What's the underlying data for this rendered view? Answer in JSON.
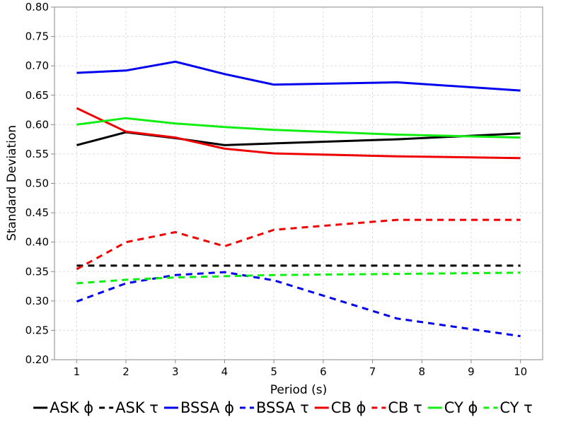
{
  "chart_data": {
    "type": "line",
    "xlabel": "Period (s)",
    "ylabel": "Standard Deviation",
    "xlim": [
      0.55,
      10.45
    ],
    "ylim": [
      0.2,
      0.8
    ],
    "x_ticks": [
      1,
      2,
      3,
      4,
      5,
      6,
      7,
      8,
      9,
      10
    ],
    "x_tick_labels": [
      "1",
      "2",
      "3",
      "4",
      "5",
      "6",
      "7",
      "8",
      "9",
      "10"
    ],
    "y_ticks": [
      0.2,
      0.25,
      0.3,
      0.35,
      0.4,
      0.45,
      0.5,
      0.55,
      0.6,
      0.65,
      0.7,
      0.75,
      0.8
    ],
    "y_tick_labels": [
      "0.20",
      "0.25",
      "0.30",
      "0.35",
      "0.40",
      "0.45",
      "0.50",
      "0.55",
      "0.60",
      "0.65",
      "0.70",
      "0.75",
      "0.80"
    ],
    "grid": true,
    "legend_position": "bottom",
    "series": [
      {
        "name": "ASK ϕ",
        "color": "#000000",
        "dash": "solid",
        "x": [
          1,
          2,
          3,
          4,
          5,
          7.5,
          10
        ],
        "y": [
          0.565,
          0.587,
          0.577,
          0.565,
          0.568,
          0.575,
          0.585
        ]
      },
      {
        "name": "ASK τ",
        "color": "#000000",
        "dash": "dashed",
        "x": [
          1,
          2,
          3,
          4,
          5,
          7.5,
          10
        ],
        "y": [
          0.36,
          0.36,
          0.36,
          0.36,
          0.36,
          0.36,
          0.36
        ]
      },
      {
        "name": "BSSA ϕ",
        "color": "#0000ee",
        "dash": "solid",
        "x": [
          1,
          2,
          3,
          4,
          5,
          7.5,
          10
        ],
        "y": [
          0.688,
          0.692,
          0.707,
          0.686,
          0.668,
          0.672,
          0.658
        ]
      },
      {
        "name": "BSSA τ",
        "color": "#0000ee",
        "dash": "dashed",
        "x": [
          1,
          2,
          3,
          4,
          5,
          7.5,
          10
        ],
        "y": [
          0.299,
          0.33,
          0.344,
          0.349,
          0.335,
          0.27,
          0.24
        ]
      },
      {
        "name": "CB ϕ",
        "color": "#ee0000",
        "dash": "solid",
        "x": [
          1,
          2,
          3,
          4,
          5,
          7.5,
          10
        ],
        "y": [
          0.628,
          0.588,
          0.578,
          0.559,
          0.551,
          0.546,
          0.543
        ]
      },
      {
        "name": "CB τ",
        "color": "#ee0000",
        "dash": "dashed",
        "x": [
          1,
          2,
          3,
          4,
          5,
          7.5,
          10
        ],
        "y": [
          0.354,
          0.4,
          0.417,
          0.393,
          0.421,
          0.438,
          0.438
        ]
      },
      {
        "name": "CY ϕ",
        "color": "#11ee11",
        "dash": "solid",
        "x": [
          1,
          2,
          3,
          4,
          5,
          7.5,
          10
        ],
        "y": [
          0.6,
          0.611,
          0.602,
          0.596,
          0.591,
          0.583,
          0.578
        ]
      },
      {
        "name": "CY τ",
        "color": "#11ee11",
        "dash": "dashed",
        "x": [
          1,
          2,
          3,
          4,
          5,
          7.5,
          10
        ],
        "y": [
          0.33,
          0.336,
          0.34,
          0.342,
          0.344,
          0.346,
          0.348
        ]
      }
    ]
  }
}
